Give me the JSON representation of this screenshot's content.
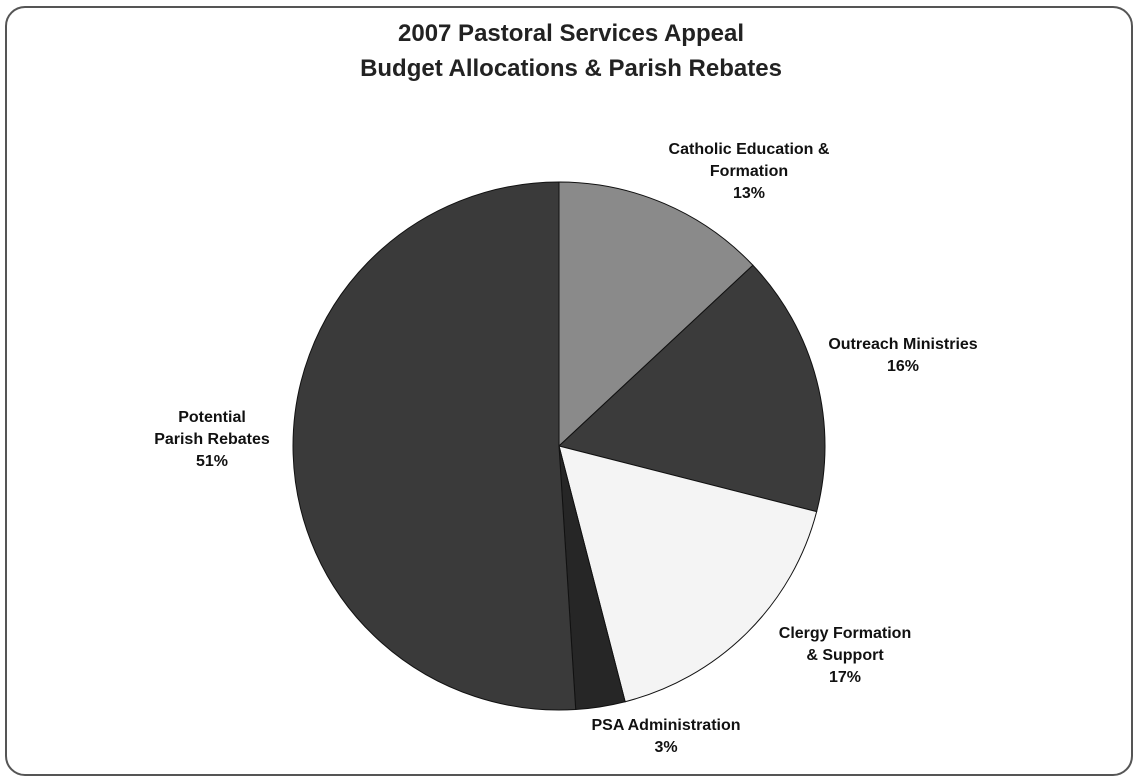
{
  "chart_data": {
    "type": "pie",
    "title_lines": [
      "2007 Pastoral Services Appeal",
      "Budget Allocations & Parish Rebates"
    ],
    "start": "12 o'clock",
    "direction": "clockwise",
    "slices": [
      {
        "label_lines": [
          "Catholic Education &",
          "Formation"
        ],
        "value": 13,
        "value_label": "13%",
        "color": "#8a8a8a"
      },
      {
        "label_lines": [
          "Outreach Ministries"
        ],
        "value": 16,
        "value_label": "16%",
        "color": "#3b3b3b"
      },
      {
        "label_lines": [
          "Clergy Formation",
          "& Support"
        ],
        "value": 17,
        "value_label": "17%",
        "color": "#f4f4f4"
      },
      {
        "label_lines": [
          "PSA Administration"
        ],
        "value": 3,
        "value_label": "3%",
        "color": "#262626"
      },
      {
        "label_lines": [
          "Potential",
          "Parish Rebates"
        ],
        "value": 51,
        "value_label": "51%",
        "color": "#3a3a3a"
      }
    ],
    "legend": "none"
  }
}
